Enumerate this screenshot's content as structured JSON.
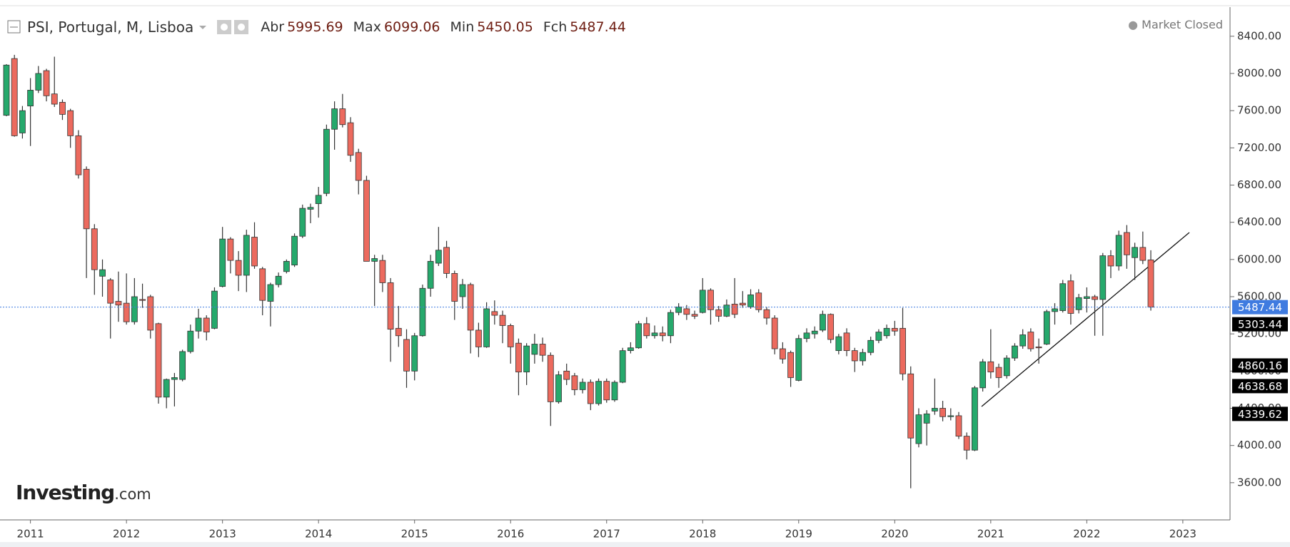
{
  "chart_data": {
    "type": "candlestick",
    "title": "PSI, Portugal, M, Lisboa",
    "header_labels": [
      "Abr",
      "Max",
      "Min",
      "Fch"
    ],
    "market_status": "Market Closed",
    "logo": {
      "name": "Investing",
      "suffix": ".com"
    },
    "categories": [
      null,
      null,
      null,
      "2011",
      null,
      null,
      null,
      null,
      null,
      null,
      null,
      null,
      null,
      null,
      null,
      "2012",
      null,
      null,
      null,
      null,
      null,
      null,
      null,
      null,
      null,
      null,
      null,
      "2013",
      null,
      null,
      null,
      null,
      null,
      null,
      null,
      null,
      null,
      null,
      null,
      "2014",
      null,
      null,
      null,
      null,
      null,
      null,
      null,
      null,
      null,
      null,
      null,
      "2015",
      null,
      null,
      null,
      null,
      null,
      null,
      null,
      null,
      null,
      null,
      null,
      "2016",
      null,
      null,
      null,
      null,
      null,
      null,
      null,
      null,
      null,
      null,
      null,
      "2017",
      null,
      null,
      null,
      null,
      null,
      null,
      null,
      null,
      null,
      null,
      null,
      "2018",
      null,
      null,
      null,
      null,
      null,
      null,
      null,
      null,
      null,
      null,
      null,
      "2019",
      null,
      null,
      null,
      null,
      null,
      null,
      null,
      null,
      null,
      null,
      null,
      "2020",
      null,
      null,
      null,
      null,
      null,
      null,
      null,
      null,
      null,
      null,
      null,
      "2021",
      null,
      null,
      null,
      null,
      null,
      null,
      null,
      null,
      null,
      null,
      null,
      "2022",
      null,
      null,
      null,
      null,
      null,
      null,
      null,
      null,
      null,
      null,
      null,
      "2023"
    ],
    "open": [
      7550,
      8160,
      7360,
      7650,
      7820,
      8030,
      7780,
      7690,
      7600,
      7330,
      6970,
      6330,
      5820,
      5780,
      5550,
      5530,
      5330,
      5570,
      5600,
      5310,
      4520,
      4710,
      4710,
      5010,
      5230,
      5370,
      5260,
      5710,
      6220,
      5990,
      5830,
      6240,
      5900,
      5550,
      5730,
      5870,
      5940,
      6250,
      6540,
      6600,
      6710,
      7400,
      7620,
      7470,
      7150,
      6850,
      5980,
      5990,
      5750,
      5260,
      5140,
      4800,
      5180,
      5690,
      5960,
      6130,
      5850,
      5600,
      5730,
      5240,
      5060,
      5440,
      5400,
      5290,
      5100,
      4790,
      4980,
      5090,
      4970,
      4470,
      4800,
      4750,
      4600,
      4680,
      4450,
      4690,
      4490,
      4680,
      5020,
      5050,
      5310,
      5180,
      5210,
      5180,
      5430,
      5470,
      5410,
      5430,
      5670,
      5460,
      5390,
      5520,
      5530,
      5490,
      5640,
      5460,
      5370,
      5040,
      5000,
      4700,
      5150,
      5200,
      5240,
      5410,
      5020,
      5210,
      5020,
      4910,
      5000,
      5130,
      5180,
      5260,
      5260,
      4770,
      4020,
      4240,
      4370,
      4400,
      4310,
      4320,
      4100,
      3950,
      4620,
      4900,
      4840,
      4750,
      4940,
      5070,
      5220,
      5060,
      5090,
      5440,
      5450,
      5770,
      5460,
      5580,
      5600,
      5570,
      6040,
      5930,
      6290,
      6020,
      6130,
      5995.69,
      null,
      null,
      null,
      null
    ],
    "high": [
      8100,
      8200,
      7650,
      7950,
      8080,
      8050,
      8180,
      7720,
      7620,
      7390,
      7000,
      6380,
      6000,
      5800,
      5870,
      5850,
      5800,
      5740,
      5620,
      5320,
      4720,
      4780,
      5030,
      5300,
      5470,
      5400,
      5700,
      6350,
      6240,
      6090,
      6320,
      6400,
      5920,
      5750,
      5860,
      6000,
      6280,
      6590,
      6600,
      6780,
      7450,
      7700,
      7780,
      7530,
      7190,
      6900,
      6050,
      6050,
      5800,
      5500,
      5250,
      5210,
      5730,
      6050,
      6350,
      6200,
      5880,
      5790,
      5750,
      5320,
      5540,
      5560,
      5450,
      5310,
      5150,
      5100,
      5200,
      5160,
      5000,
      4800,
      4880,
      4780,
      4720,
      4710,
      4720,
      4720,
      4700,
      5050,
      5110,
      5340,
      5380,
      5290,
      5280,
      5460,
      5530,
      5510,
      5450,
      5800,
      5690,
      5500,
      5570,
      5800,
      5660,
      5680,
      5680,
      5490,
      5400,
      5110,
      5020,
      5190,
      5260,
      5280,
      5450,
      5420,
      5200,
      5260,
      5050,
      5040,
      5170,
      5250,
      5300,
      5340,
      5480,
      4850,
      4400,
      4380,
      4720,
      4480,
      4400,
      4360,
      4140,
      4640,
      4930,
      5250,
      4880,
      4970,
      5100,
      5250,
      5260,
      5150,
      5460,
      5530,
      5780,
      5840,
      5630,
      5700,
      5620,
      6070,
      6100,
      6310,
      6370,
      6180,
      6300,
      6099.06,
      null,
      null,
      null,
      null
    ],
    "low": [
      7540,
      7320,
      7300,
      7220,
      7790,
      7700,
      7640,
      7500,
      7200,
      6870,
      5800,
      5620,
      5600,
      5150,
      5330,
      5300,
      5300,
      5480,
      5150,
      4450,
      4400,
      4420,
      4690,
      4990,
      5150,
      5130,
      5250,
      5700,
      5850,
      5660,
      5650,
      5900,
      5400,
      5280,
      5700,
      5850,
      5920,
      6230,
      6390,
      6450,
      6680,
      7180,
      7420,
      7050,
      6700,
      5980,
      5500,
      5650,
      4900,
      5060,
      4620,
      4700,
      5170,
      5600,
      5930,
      5800,
      5350,
      5470,
      4990,
      4950,
      5050,
      5300,
      5100,
      4880,
      4540,
      4650,
      4880,
      4900,
      4210,
      4450,
      4650,
      4540,
      4560,
      4380,
      4430,
      4460,
      4470,
      4670,
      4990,
      5040,
      5150,
      5150,
      5120,
      5100,
      5400,
      5350,
      5360,
      5420,
      5300,
      5330,
      5380,
      5370,
      5480,
      5470,
      5430,
      5300,
      4980,
      4880,
      4630,
      4690,
      5110,
      5150,
      5220,
      5100,
      4980,
      4960,
      4790,
      4860,
      4970,
      5100,
      5150,
      5180,
      4700,
      3540,
      3980,
      4000,
      4330,
      4260,
      4270,
      4070,
      3850,
      3940,
      4580,
      4720,
      4620,
      4720,
      4910,
      5040,
      5010,
      4880,
      5080,
      5300,
      5430,
      5300,
      5420,
      5430,
      5180,
      5180,
      5800,
      5880,
      5900,
      5780,
      5950,
      5450.05,
      null,
      null,
      null,
      null
    ],
    "close": [
      8090,
      7330,
      7600,
      7820,
      8000,
      7760,
      7670,
      7560,
      7330,
      6910,
      6330,
      5890,
      5890,
      5530,
      5510,
      5330,
      5600,
      5560,
      5240,
      4520,
      4710,
      4730,
      5010,
      5230,
      5370,
      5220,
      5660,
      6220,
      5990,
      5830,
      6260,
      5930,
      5560,
      5730,
      5820,
      5980,
      6250,
      6550,
      6560,
      6690,
      7400,
      7620,
      7450,
      7120,
      6850,
      5980,
      6010,
      5750,
      5250,
      5180,
      4800,
      5180,
      5690,
      5980,
      6100,
      5850,
      5550,
      5730,
      5240,
      5060,
      5470,
      5400,
      5290,
      5060,
      4790,
      5070,
      5090,
      4970,
      4470,
      4760,
      4710,
      4600,
      4680,
      4450,
      4690,
      4490,
      4680,
      5020,
      5050,
      5310,
      5180,
      5210,
      5180,
      5430,
      5490,
      5410,
      5390,
      5670,
      5460,
      5390,
      5510,
      5410,
      5510,
      5620,
      5460,
      5370,
      5040,
      4930,
      4730,
      5150,
      5210,
      5230,
      5410,
      5140,
      5170,
      5020,
      4910,
      5000,
      5130,
      5220,
      5260,
      5230,
      4770,
      4080,
      4330,
      4340,
      4400,
      4310,
      4320,
      4100,
      3950,
      4620,
      4900,
      4790,
      4730,
      4940,
      5070,
      5190,
      5040,
      5050,
      5440,
      5470,
      5740,
      5420,
      5590,
      5600,
      5570,
      6040,
      5930,
      6260,
      6050,
      6130,
      5990,
      5487.44,
      null,
      null,
      null,
      null
    ],
    "up_color": "#26a96c",
    "down_color": "#ec6a5e",
    "ylim": [
      3200,
      8713
    ],
    "yticks": [
      {
        "value": 3600,
        "label": "3600.00"
      },
      {
        "value": 4000,
        "label": "4000.00"
      },
      {
        "value": 4400,
        "label": "4400.00"
      },
      {
        "value": 4800,
        "label": "4800.00"
      },
      {
        "value": 5200,
        "label": "5200.00"
      },
      {
        "value": 5600,
        "label": "5600.00"
      },
      {
        "value": 6000,
        "label": "6000.00"
      },
      {
        "value": 6400,
        "label": "6400.00"
      },
      {
        "value": 6800,
        "label": "6800.00"
      },
      {
        "value": 7200,
        "label": "7200.00"
      },
      {
        "value": 7600,
        "label": "7600.00"
      },
      {
        "value": 8000,
        "label": "8000.00"
      },
      {
        "value": 8400,
        "label": "8400.00"
      }
    ],
    "price_markers": [
      5487.44,
      5303.44,
      4860.16,
      4638.68,
      4339.62
    ],
    "price_marker_colors": [
      "#3f7be0",
      "#000000",
      "#000000",
      "#000000",
      "#000000"
    ]
  }
}
